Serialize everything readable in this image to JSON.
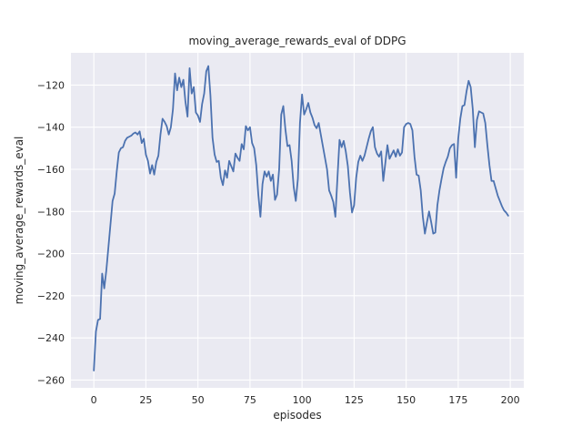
{
  "chart_data": {
    "type": "line",
    "title": "moving_average_rewards_eval of DDPG",
    "xlabel": "episodes",
    "ylabel": "moving_average_rewards_eval",
    "x_ticks": [
      0,
      25,
      50,
      75,
      100,
      125,
      150,
      175,
      200
    ],
    "x_tick_labels": [
      "0",
      "25",
      "50",
      "75",
      "100",
      "125",
      "150",
      "175",
      "200"
    ],
    "y_ticks": [
      -120,
      -140,
      -160,
      -180,
      -200,
      -220,
      -240,
      -260
    ],
    "y_tick_labels": [
      "−120",
      "−140",
      "−160",
      "−180",
      "−200",
      "−220",
      "−240",
      "−260"
    ],
    "xlim": [
      -11,
      206.5
    ],
    "ylim": [
      -263.7,
      -104.7
    ],
    "grid": true,
    "legend": "none",
    "colors": {
      "line": "#4C72B0",
      "axes_background": "#EAEAF2",
      "grid_line": "#FFFFFF",
      "text": "#262626",
      "figure_background": "#FFFFFF"
    },
    "x_note": "x value = episode index 0..199",
    "values": [
      -255.5,
      -237,
      -231.5,
      -231,
      -209.5,
      -216.5,
      -208,
      -197,
      -186,
      -175,
      -171.5,
      -161,
      -152,
      -150,
      -149.5,
      -146.5,
      -145,
      -144.5,
      -144,
      -143,
      -142.5,
      -143.5,
      -142,
      -147.5,
      -145.5,
      -153,
      -156,
      -162,
      -158,
      -162.5,
      -156.5,
      -153.5,
      -143.5,
      -136,
      -137.5,
      -139.5,
      -143.5,
      -140,
      -131.5,
      -114.5,
      -122.5,
      -116.5,
      -121,
      -117.5,
      -128,
      -135,
      -112,
      -124,
      -121,
      -133,
      -134.5,
      -137.5,
      -129,
      -124,
      -113.5,
      -111,
      -125,
      -145,
      -153,
      -156.5,
      -156,
      -164,
      -167.5,
      -160.5,
      -164,
      -156,
      -158.5,
      -161,
      -152.5,
      -154.5,
      -156,
      -148,
      -150.5,
      -139.5,
      -141.5,
      -140,
      -147.5,
      -150,
      -158,
      -172,
      -182.5,
      -167,
      -161,
      -163.5,
      -161,
      -165.5,
      -162.5,
      -174.5,
      -172,
      -160,
      -134,
      -130,
      -141,
      -149,
      -148.5,
      -156,
      -168.5,
      -175,
      -164.5,
      -138,
      -124.5,
      -134,
      -131.5,
      -128.5,
      -133,
      -135.5,
      -139,
      -140.5,
      -138,
      -143.5,
      -149,
      -154.5,
      -160,
      -170,
      -172.5,
      -175.5,
      -182.5,
      -164,
      -146,
      -149.5,
      -146.5,
      -151.5,
      -158.5,
      -171,
      -180.5,
      -177,
      -164,
      -156.5,
      -153.5,
      -156,
      -153.5,
      -149.5,
      -145.5,
      -142,
      -140,
      -149.5,
      -152.5,
      -154,
      -151.5,
      -165.5,
      -157,
      -148.5,
      -155,
      -153,
      -151,
      -154,
      -150.5,
      -153.5,
      -152,
      -140,
      -138.5,
      -138,
      -138.5,
      -141.5,
      -154,
      -162.5,
      -163,
      -170,
      -182.5,
      -190.5,
      -185,
      -180,
      -185,
      -190.5,
      -190,
      -177,
      -170,
      -164.5,
      -159.5,
      -156.5,
      -154,
      -150,
      -148.5,
      -148,
      -164,
      -145.5,
      -136,
      -130,
      -129.5,
      -123,
      -118,
      -121,
      -131.5,
      -149.5,
      -136.5,
      -132.5,
      -133,
      -133.5,
      -138,
      -148.5,
      -158,
      -165.5,
      -165.5,
      -169,
      -172.5,
      -175,
      -177.5,
      -179.5,
      -180.5,
      -182
    ]
  }
}
